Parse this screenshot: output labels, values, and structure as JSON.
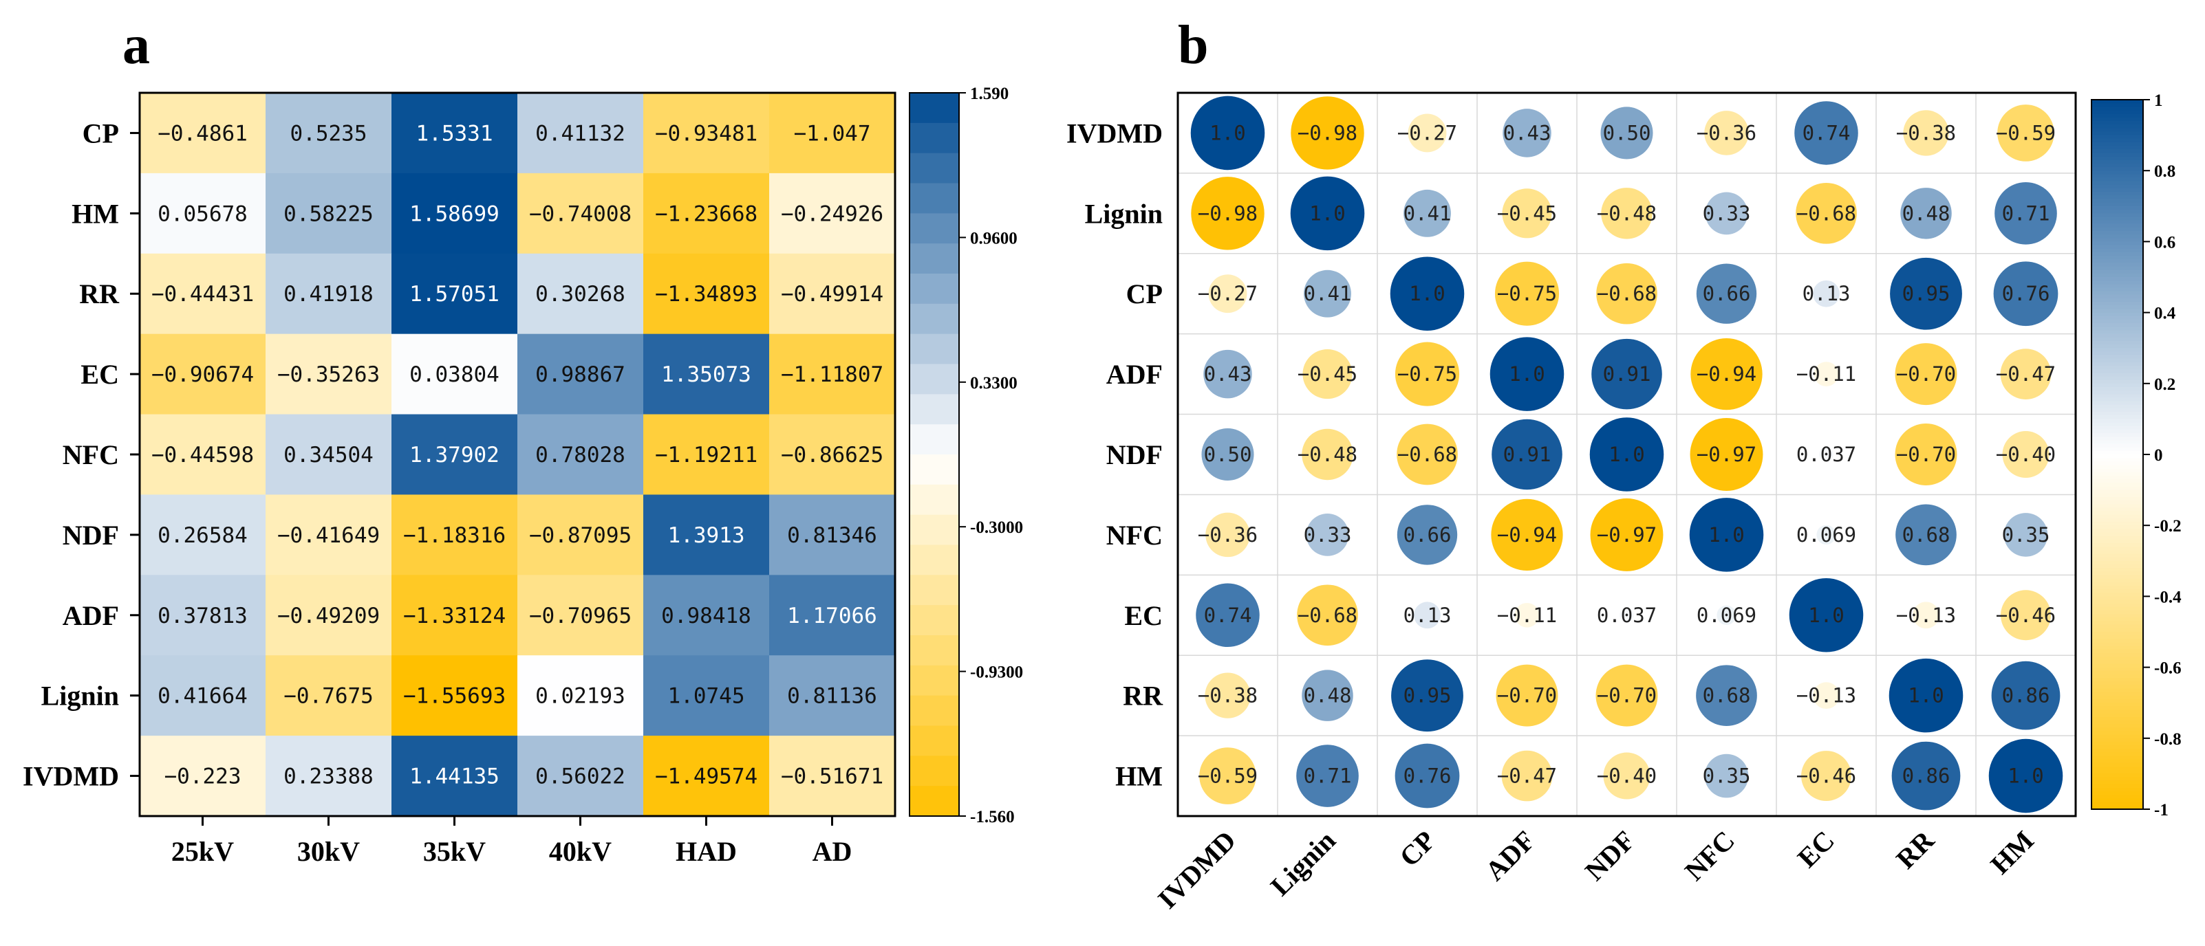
{
  "panel_a_label": "a",
  "panel_b_label": "b",
  "colors": {
    "neg": "#FFC000",
    "pos": "#004A91",
    "mid": "#FFFFFF"
  },
  "chart_data": [
    {
      "type": "heatmap",
      "rows": [
        "CP",
        "HM",
        "RR",
        "EC",
        "NFC",
        "NDF",
        "ADF",
        "Lignin",
        "IVDMD"
      ],
      "columns": [
        "25kV",
        "30kV",
        "35kV",
        "40kV",
        "HAD",
        "AD"
      ],
      "values": [
        [
          "-0.4861",
          "0.5235",
          "1.5331",
          "0.41132",
          "-0.93481",
          "-1.047"
        ],
        [
          "0.05678",
          "0.58225",
          "1.58699",
          "-0.74008",
          "-1.23668",
          "-0.24926"
        ],
        [
          "-0.44431",
          "0.41918",
          "1.57051",
          "0.30268",
          "-1.34893",
          "-0.49914"
        ],
        [
          "-0.90674",
          "-0.35263",
          "0.03804",
          "0.98867",
          "1.35073",
          "-1.11807"
        ],
        [
          "-0.44598",
          "0.34504",
          "1.37902",
          "0.78028",
          "-1.19211",
          "-0.86625"
        ],
        [
          "0.26584",
          "-0.41649",
          "-1.18316",
          "-0.87095",
          "1.3913",
          "0.81346"
        ],
        [
          "0.37813",
          "-0.49209",
          "-1.33124",
          "-0.70965",
          "0.98418",
          "1.17066"
        ],
        [
          "0.41664",
          "-0.7675",
          "-1.55693",
          "0.02193",
          "1.0745",
          "0.81136"
        ],
        [
          "-0.223",
          "0.23388",
          "1.44135",
          "0.56022",
          "-1.49574",
          "-0.51671"
        ]
      ],
      "colorbar": {
        "min": -1.56,
        "max": 1.59,
        "ticks": [
          "1.590",
          "0.9600",
          "0.3300",
          "-0.3000",
          "-0.9300",
          "-1.560"
        ]
      }
    },
    {
      "type": "correlation",
      "rows": [
        "IVDMD",
        "Lignin",
        "CP",
        "ADF",
        "NDF",
        "NFC",
        "EC",
        "RR",
        "HM"
      ],
      "columns": [
        "IVDMD",
        "Lignin",
        "CP",
        "ADF",
        "NDF",
        "NFC",
        "EC",
        "RR",
        "HM"
      ],
      "values": [
        [
          "1.0",
          "-0.98",
          "-0.27",
          "0.43",
          "0.50",
          "-0.36",
          "0.74",
          "-0.38",
          "-0.59"
        ],
        [
          "-0.98",
          "1.0",
          "0.41",
          "-0.45",
          "-0.48",
          "0.33",
          "-0.68",
          "0.48",
          "0.71"
        ],
        [
          "-0.27",
          "0.41",
          "1.0",
          "-0.75",
          "-0.68",
          "0.66",
          "0.13",
          "0.95",
          "0.76"
        ],
        [
          "0.43",
          "-0.45",
          "-0.75",
          "1.0",
          "0.91",
          "-0.94",
          "-0.11",
          "-0.70",
          "-0.47"
        ],
        [
          "0.50",
          "-0.48",
          "-0.68",
          "0.91",
          "1.0",
          "-0.97",
          "0.037",
          "-0.70",
          "-0.40"
        ],
        [
          "-0.36",
          "0.33",
          "0.66",
          "-0.94",
          "-0.97",
          "1.0",
          "0.069",
          "0.68",
          "0.35"
        ],
        [
          "0.74",
          "-0.68",
          "0.13",
          "-0.11",
          "0.037",
          "0.069",
          "1.0",
          "-0.13",
          "-0.46"
        ],
        [
          "-0.38",
          "0.48",
          "0.95",
          "-0.70",
          "-0.70",
          "0.68",
          "-0.13",
          "1.0",
          "0.86"
        ],
        [
          "-0.59",
          "0.71",
          "0.76",
          "-0.47",
          "-0.40",
          "0.35",
          "-0.46",
          "0.86",
          "1.0"
        ]
      ],
      "colorbar": {
        "min": -1,
        "max": 1,
        "ticks": [
          "1",
          "0.8",
          "0.6",
          "0.4",
          "0.2",
          "0",
          "-0.2",
          "-0.4",
          "-0.6",
          "-0.8",
          "-1"
        ]
      }
    }
  ]
}
